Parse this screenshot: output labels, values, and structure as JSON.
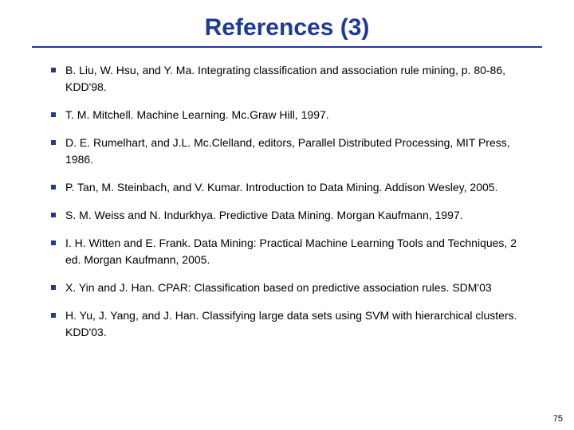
{
  "title": "References (3)",
  "title_color": "#1f3a93",
  "rule_color": "#1f3a93",
  "bullet_color": "#1f3a93",
  "text_color": "#000000",
  "background_color": "#ffffff",
  "title_fontsize": 30,
  "body_fontsize": 14,
  "page_number": "75",
  "references": [
    "B. Liu, W. Hsu, and Y. Ma.  Integrating classification and association rule mining, p. 80-86, KDD'98.",
    "T. M. Mitchell. Machine Learning. Mc.Graw Hill, 1997.",
    "D. E. Rumelhart, and J.L. Mc.Clelland, editors, Parallel Distributed Processing, MIT Press, 1986.",
    "P. Tan, M. Steinbach, and V. Kumar. Introduction to Data Mining. Addison Wesley, 2005.",
    "S. M. Weiss and N. Indurkhya. Predictive Data Mining. Morgan Kaufmann, 1997.",
    "I. H. Witten and E. Frank. Data Mining: Practical Machine Learning Tools and Techniques,  2 ed.  Morgan Kaufmann, 2005.",
    "X. Yin and J. Han. CPAR: Classification based on predictive association rules. SDM'03",
    "H. Yu, J. Yang, and J. Han. Classifying large data sets using SVM with hierarchical clusters. KDD'03."
  ]
}
